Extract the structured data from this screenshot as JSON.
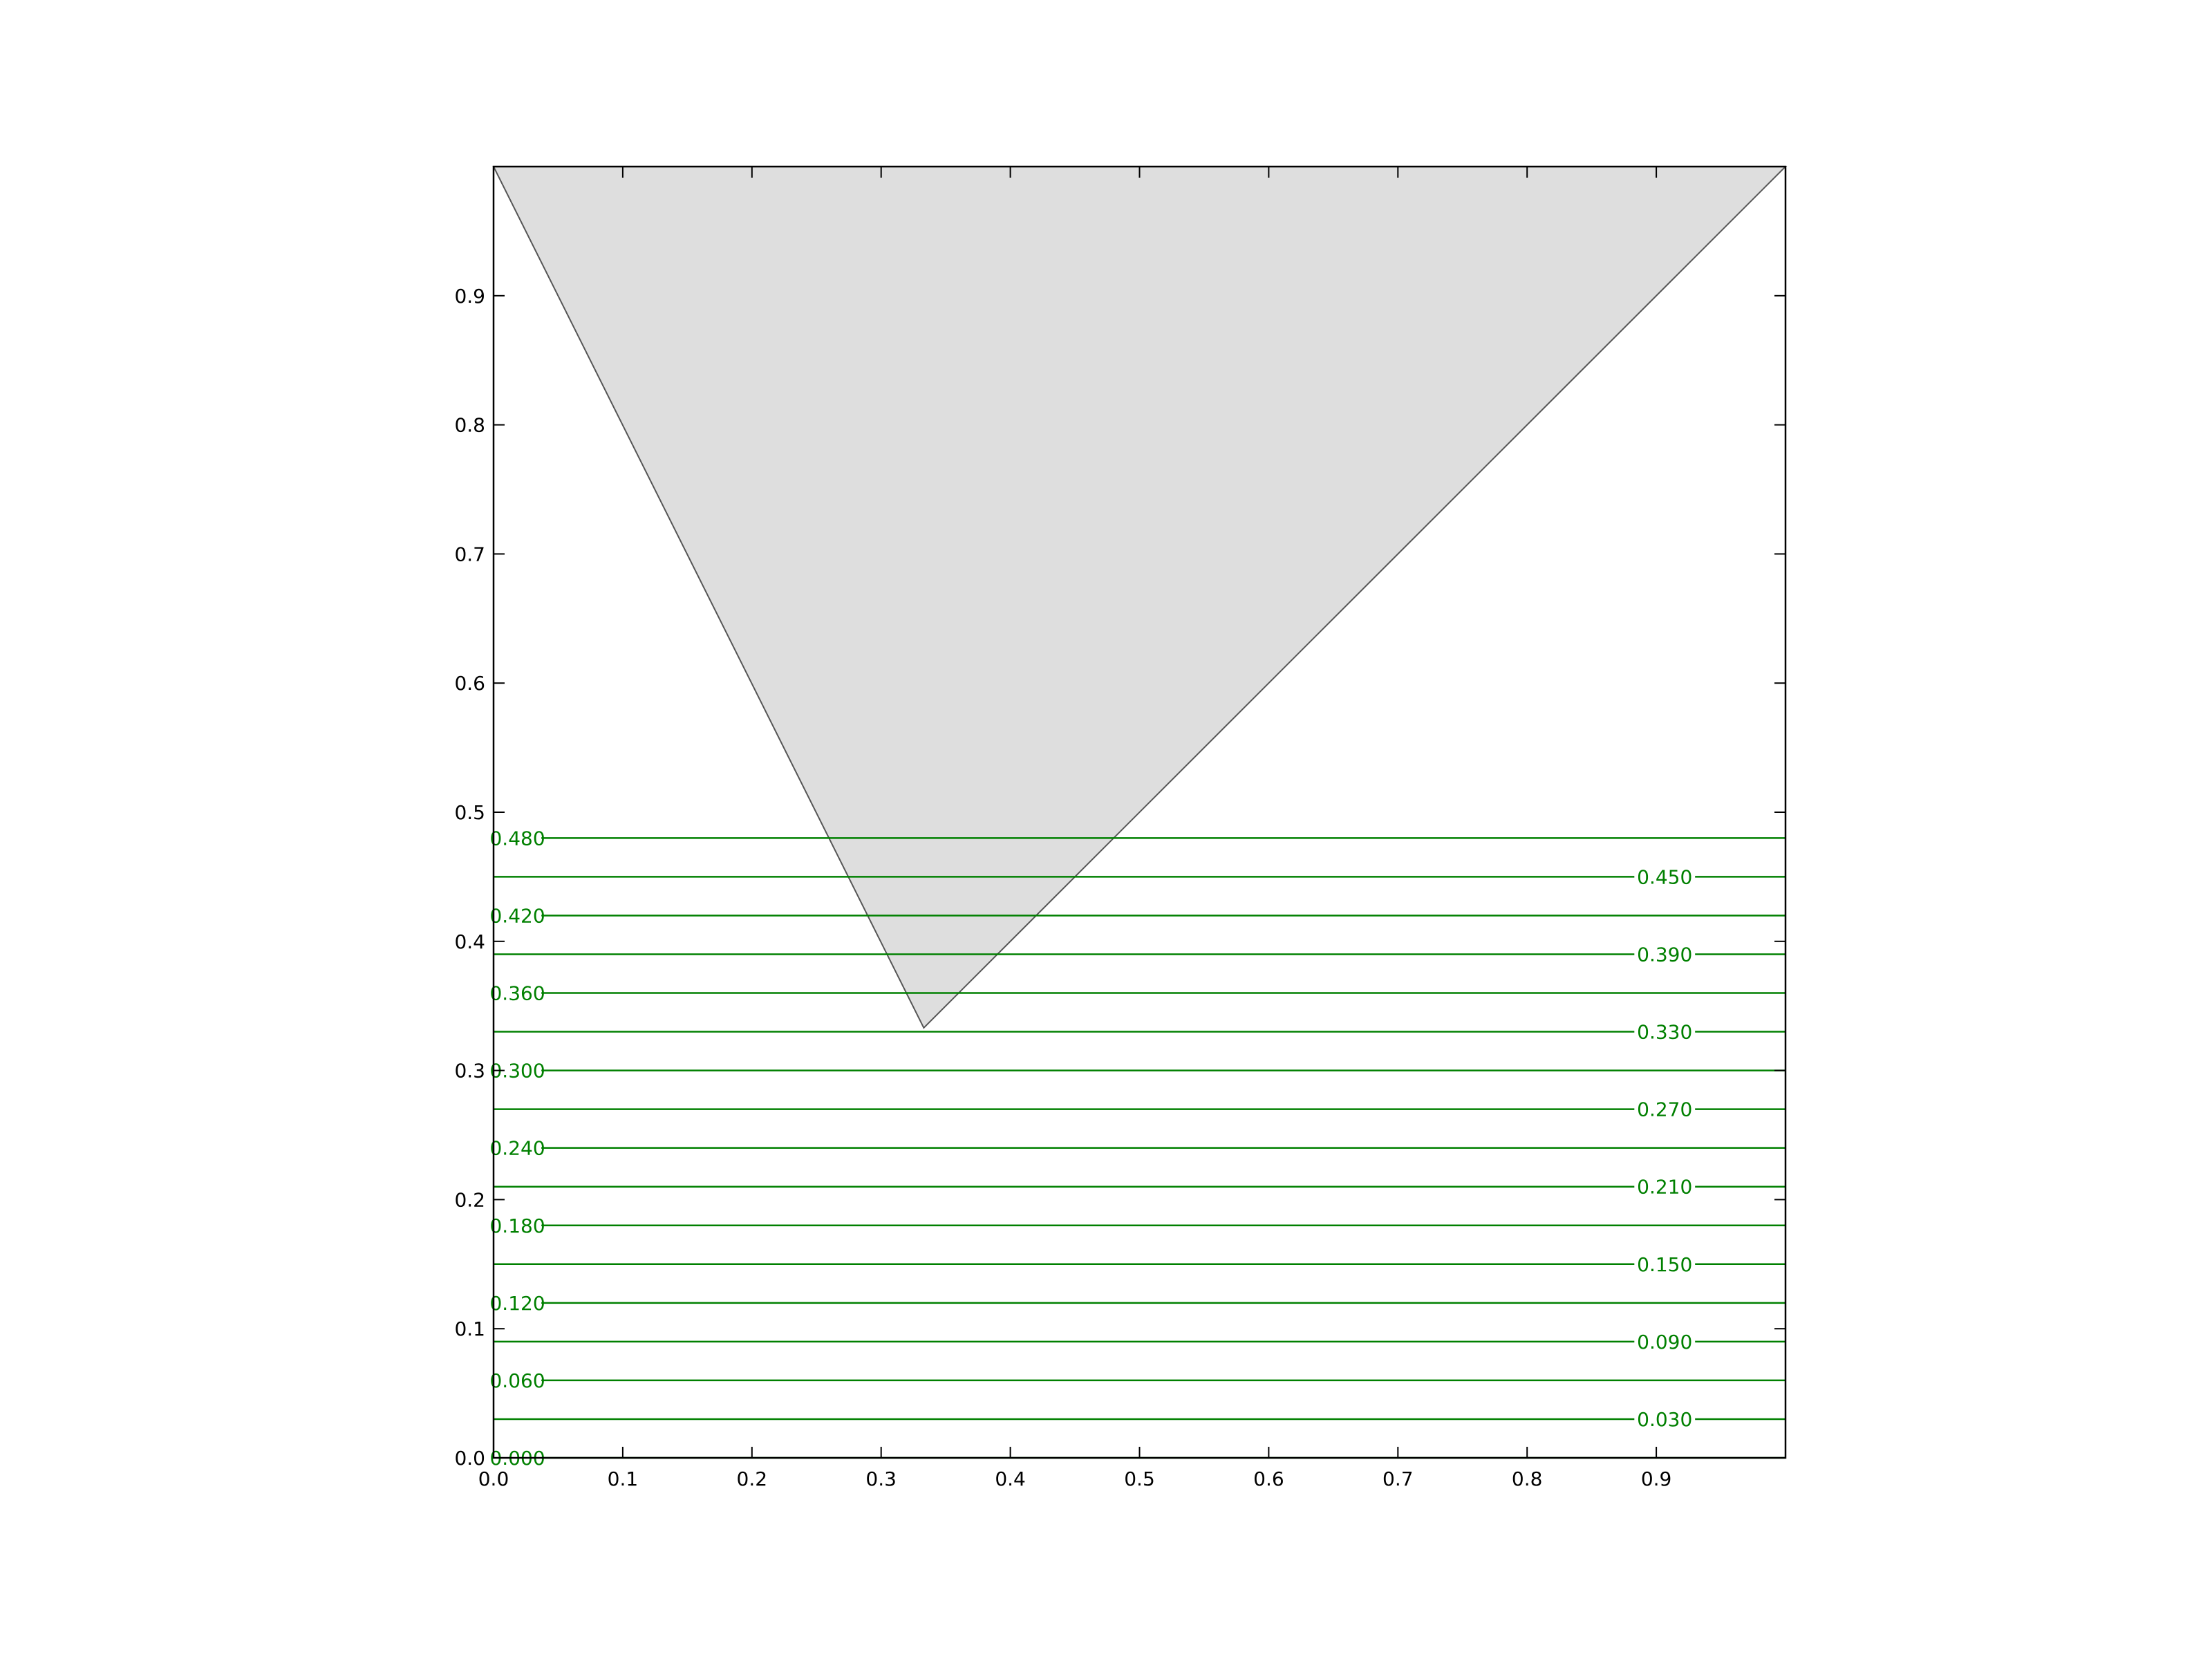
{
  "chart_data": {
    "type": "contour",
    "title": "",
    "xlabel": "",
    "ylabel": "",
    "xlim": [
      0,
      1
    ],
    "ylim": [
      0,
      1
    ],
    "grid": false,
    "legend": "none",
    "x_ticks": [
      "0.0",
      "0.1",
      "0.2",
      "0.3",
      "0.4",
      "0.5",
      "0.6",
      "0.7",
      "0.8",
      "0.9"
    ],
    "y_ticks": [
      "0.0",
      "0.1",
      "0.2",
      "0.3",
      "0.4",
      "0.5",
      "0.6",
      "0.7",
      "0.8",
      "0.9"
    ],
    "shaded_triangle": {
      "vertices": [
        [
          0,
          1
        ],
        [
          1,
          1
        ],
        [
          0.333,
          0.333
        ]
      ],
      "fill": "#dedede",
      "stroke": "#555555"
    },
    "contour_color": "#008000",
    "contour_levels": [
      0.0,
      0.03,
      0.06,
      0.09,
      0.12,
      0.15,
      0.18,
      0.21,
      0.24,
      0.27,
      0.3,
      0.33,
      0.36,
      0.39,
      0.42,
      0.45,
      0.48
    ],
    "contour_labels": [
      {
        "level": 0.0,
        "text": "0.000",
        "side": "left"
      },
      {
        "level": 0.03,
        "text": "0.030",
        "side": "right"
      },
      {
        "level": 0.06,
        "text": "0.060",
        "side": "left"
      },
      {
        "level": 0.09,
        "text": "0.090",
        "side": "right"
      },
      {
        "level": 0.12,
        "text": "0.120",
        "side": "left"
      },
      {
        "level": 0.15,
        "text": "0.150",
        "side": "right"
      },
      {
        "level": 0.18,
        "text": "0.180",
        "side": "left"
      },
      {
        "level": 0.21,
        "text": "0.210",
        "side": "right"
      },
      {
        "level": 0.24,
        "text": "0.240",
        "side": "left"
      },
      {
        "level": 0.27,
        "text": "0.270",
        "side": "right"
      },
      {
        "level": 0.3,
        "text": "0.300",
        "side": "left"
      },
      {
        "level": 0.33,
        "text": "0.330",
        "side": "right"
      },
      {
        "level": 0.36,
        "text": "0.360",
        "side": "left"
      },
      {
        "level": 0.39,
        "text": "0.390",
        "side": "right"
      },
      {
        "level": 0.42,
        "text": "0.420",
        "side": "left"
      },
      {
        "level": 0.45,
        "text": "0.450",
        "side": "right"
      },
      {
        "level": 0.48,
        "text": "0.480",
        "side": "left"
      }
    ]
  }
}
